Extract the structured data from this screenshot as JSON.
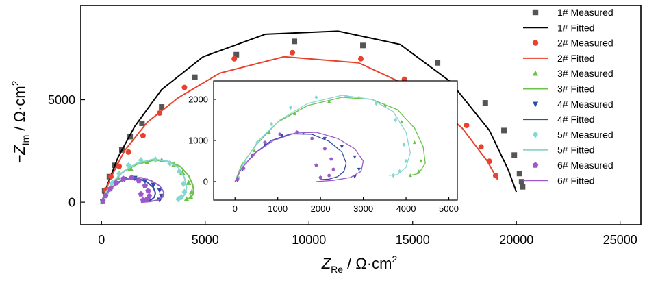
{
  "chart_data": {
    "type": "scatter",
    "title": "",
    "xlabel": {
      "main": "Z",
      "sub": "Re",
      "unit": " / Ω·cm",
      "sup": "2"
    },
    "ylabel": {
      "main": "−Z",
      "sub": "Im",
      "unit": " / Ω·cm",
      "sup": "2"
    },
    "xlim": [
      -1000,
      26000
    ],
    "ylim": [
      -1100,
      9600
    ],
    "xticks": [
      0,
      5000,
      10000,
      15000,
      20000,
      25000
    ],
    "yticks": [
      0,
      5000
    ],
    "grid": false,
    "legend": {
      "placement": "right",
      "entries": [
        {
          "label": "1# Measured",
          "kind": "square",
          "color": "#555555"
        },
        {
          "label": "1# Fitted",
          "kind": "line",
          "color": "#000000"
        },
        {
          "label": "2# Measured",
          "kind": "circle",
          "color": "#e8412c"
        },
        {
          "label": "2# Fitted",
          "kind": "line",
          "color": "#e8412c"
        },
        {
          "label": "3# Measured",
          "kind": "triangle-up",
          "color": "#6cc24a"
        },
        {
          "label": "3# Fitted",
          "kind": "line",
          "color": "#6cc24a"
        },
        {
          "label": "4# Measured",
          "kind": "triangle-down",
          "color": "#2f4da6"
        },
        {
          "label": "4# Fitted",
          "kind": "line",
          "color": "#2f4da6"
        },
        {
          "label": "5# Measured",
          "kind": "diamond",
          "color": "#86d7d0"
        },
        {
          "label": "5# Fitted",
          "kind": "line",
          "color": "#86d7d0"
        },
        {
          "label": "6# Measured",
          "kind": "pentagon",
          "color": "#9b59c9"
        },
        {
          "label": "6# Fitted",
          "kind": "line",
          "color": "#9b59c9"
        }
      ]
    },
    "series": [
      {
        "name": "1# Measured",
        "kind": "square",
        "color": "#555555",
        "x": [
          150,
          380,
          640,
          980,
          1380,
          1950,
          2900,
          4500,
          6500,
          9300,
          12600,
          16200,
          18500,
          19400,
          19900,
          20150,
          20250,
          20300
        ],
        "y": [
          550,
          1250,
          1800,
          2550,
          3200,
          3850,
          4650,
          6100,
          7200,
          7850,
          7650,
          6800,
          4850,
          3500,
          2300,
          1400,
          1000,
          750
        ]
      },
      {
        "name": "1# Fitted",
        "kind": "line",
        "color": "#000000",
        "x": [
          0,
          300,
          800,
          1600,
          2900,
          4900,
          7900,
          11400,
          14400,
          16800,
          18700,
          19600,
          20000
        ],
        "y": [
          0,
          900,
          2200,
          3700,
          5500,
          7100,
          8200,
          8350,
          7700,
          5900,
          3500,
          1600,
          500
        ]
      },
      {
        "name": "2# Measured",
        "kind": "circle",
        "color": "#e8412c",
        "x": [
          200,
          450,
          850,
          1300,
          2000,
          2800,
          4000,
          6400,
          9200,
          12500,
          14600,
          16300,
          17600,
          18300,
          18700,
          19000
        ],
        "y": [
          600,
          1250,
          1750,
          2450,
          3250,
          4350,
          5600,
          7000,
          7300,
          7000,
          6000,
          4850,
          3750,
          2700,
          2000,
          1300
        ]
      },
      {
        "name": "2# Fitted",
        "kind": "line",
        "color": "#e8412c",
        "x": [
          0,
          400,
          1100,
          2200,
          3700,
          5700,
          8800,
          12400,
          15400,
          17400,
          18600,
          19100
        ],
        "y": [
          0,
          1100,
          2500,
          3900,
          5100,
          6300,
          7100,
          6800,
          5400,
          3600,
          2000,
          1100
        ]
      },
      {
        "name": "3# Measured",
        "kind": "triangle-up",
        "color": "#6cc24a",
        "x": [
          50,
          200,
          450,
          800,
          1400,
          2200,
          2900,
          3500,
          3900,
          4200,
          4350,
          4300,
          4100
        ],
        "y": [
          50,
          350,
          750,
          1200,
          1650,
          1950,
          2050,
          1850,
          1450,
          950,
          500,
          250,
          150
        ]
      },
      {
        "name": "3# Fitted",
        "kind": "line",
        "color": "#6cc24a",
        "x": [
          0,
          150,
          500,
          1000,
          1700,
          2500,
          3200,
          3800,
          4200,
          4400,
          4450,
          4300,
          4100
        ],
        "y": [
          0,
          400,
          900,
          1450,
          1850,
          2050,
          2000,
          1750,
          1300,
          850,
          450,
          200,
          150
        ]
      },
      {
        "name": "4# Measured",
        "kind": "triangle-down",
        "color": "#2f4da6",
        "x": [
          50,
          180,
          400,
          700,
          1100,
          1600,
          2100,
          2500,
          2800,
          2900,
          2800
        ],
        "y": [
          40,
          300,
          620,
          920,
          1130,
          1180,
          1050,
          850,
          600,
          300,
          120
        ]
      },
      {
        "name": "4# Fitted",
        "kind": "line",
        "color": "#2f4da6",
        "x": [
          0,
          150,
          450,
          850,
          1300,
          1800,
          2200,
          2500,
          2600,
          2550,
          2400,
          2200,
          2000
        ],
        "y": [
          0,
          320,
          680,
          1000,
          1160,
          1150,
          980,
          720,
          450,
          250,
          120,
          60,
          50
        ]
      },
      {
        "name": "5# Measured",
        "kind": "diamond",
        "color": "#86d7d0",
        "x": [
          80,
          250,
          520,
          850,
          1300,
          1900,
          2600,
          3300,
          3750,
          3950,
          4000,
          3850,
          3700
        ],
        "y": [
          100,
          450,
          950,
          1400,
          1800,
          2050,
          2080,
          1900,
          1500,
          900,
          500,
          250,
          150
        ]
      },
      {
        "name": "5# Fitted",
        "kind": "line",
        "color": "#86d7d0",
        "x": [
          0,
          200,
          550,
          1050,
          1700,
          2500,
          3200,
          3700,
          4000,
          4100,
          4000,
          3800,
          3600
        ],
        "y": [
          0,
          450,
          1000,
          1500,
          1900,
          2100,
          2000,
          1700,
          1200,
          700,
          350,
          170,
          150
        ]
      },
      {
        "name": "6# Measured",
        "kind": "pentagon",
        "color": "#9b59c9",
        "x": [
          60,
          200,
          420,
          700,
          1050,
          1450,
          1800,
          2100,
          2250,
          2300,
          2200,
          2000,
          1900
        ],
        "y": [
          60,
          320,
          650,
          950,
          1150,
          1200,
          1050,
          800,
          550,
          300,
          150,
          100,
          400
        ]
      },
      {
        "name": "6# Fitted",
        "kind": "line",
        "color": "#9b59c9",
        "x": [
          0,
          160,
          480,
          900,
          1400,
          1900,
          2400,
          2800,
          3000,
          2950,
          2700,
          2300,
          1900
        ],
        "y": [
          0,
          330,
          700,
          1000,
          1180,
          1200,
          1050,
          800,
          500,
          250,
          100,
          30,
          0
        ]
      }
    ],
    "inset": {
      "xlim": [
        -500,
        5200
      ],
      "ylim": [
        -450,
        2450
      ],
      "xticks": [
        0,
        1000,
        2000,
        3000,
        4000,
        5000
      ],
      "yticks": [
        0,
        1000,
        2000
      ],
      "grid": false
    }
  }
}
